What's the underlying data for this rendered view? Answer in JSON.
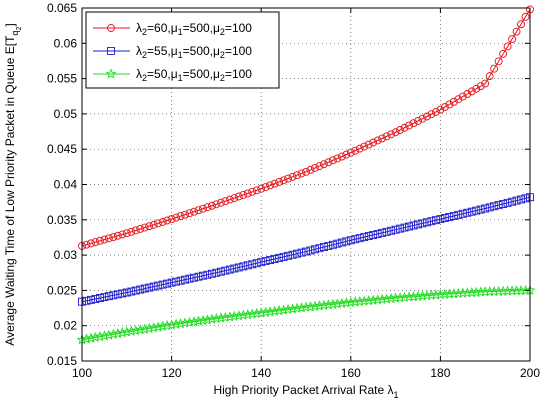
{
  "chart_data": {
    "type": "line",
    "title": "",
    "xlabel": "High Priority Packet Arrival Rate λ",
    "xlabel_sub": "1",
    "ylabel": "Average Waiting Time of Low Priority Packet in Queue E[T",
    "ylabel_sub": "q",
    "ylabel_subsub": "2",
    "ylabel_end": "]",
    "xlim": [
      100,
      200
    ],
    "ylim": [
      0.015,
      0.065
    ],
    "xticks": [
      100,
      120,
      140,
      160,
      180,
      200
    ],
    "xtick_labels": [
      "100",
      "120",
      "140",
      "160",
      "180",
      "200"
    ],
    "yticks": [
      0.015,
      0.02,
      0.025,
      0.03,
      0.035,
      0.04,
      0.045,
      0.05,
      0.055,
      0.06,
      0.065
    ],
    "ytick_labels": [
      "0.015",
      "0.02",
      "0.025",
      "0.03",
      "0.035",
      "0.04",
      "0.045",
      "0.05",
      "0.055",
      "0.06",
      "0.065"
    ],
    "grid": true,
    "legend_position": "top-left",
    "x": [
      100,
      110,
      120,
      130,
      140,
      150,
      160,
      170,
      180,
      190,
      200
    ],
    "series": [
      {
        "name": "λ2=60,μ1=500,μ2=100",
        "legend": {
          "a": "λ",
          "a_sub": "2",
          "b": "=60,μ",
          "b_sub": "1",
          "c": "=500,μ",
          "c_sub": "2",
          "d": "=100"
        },
        "color": "#e8141a",
        "marker": "circle",
        "values": [
          0.0313,
          0.0331,
          0.0351,
          0.0372,
          0.0394,
          0.0418,
          0.0445,
          0.0474,
          0.0506,
          0.0543,
          0.0648
        ]
      },
      {
        "name": "λ2=55,μ1=500,μ2=100",
        "legend": {
          "a": "λ",
          "a_sub": "2",
          "b": "=55,μ",
          "b_sub": "1",
          "c": "=500,μ",
          "c_sub": "2",
          "d": "=100"
        },
        "color": "#1c1ccc",
        "marker": "square",
        "values": [
          0.0234,
          0.0247,
          0.0261,
          0.0275,
          0.029,
          0.0305,
          0.0321,
          0.0336,
          0.0351,
          0.0366,
          0.0382
        ]
      },
      {
        "name": "λ2=50,μ1=500,μ2=100",
        "legend": {
          "a": "λ",
          "a_sub": "2",
          "b": "=50,μ",
          "b_sub": "1",
          "c": "=500,μ",
          "c_sub": "2",
          "d": "=100"
        },
        "color": "#22dd22",
        "marker": "star",
        "values": [
          0.018,
          0.0191,
          0.0201,
          0.021,
          0.0218,
          0.0226,
          0.0233,
          0.0239,
          0.0244,
          0.0248,
          0.025
        ]
      }
    ]
  }
}
